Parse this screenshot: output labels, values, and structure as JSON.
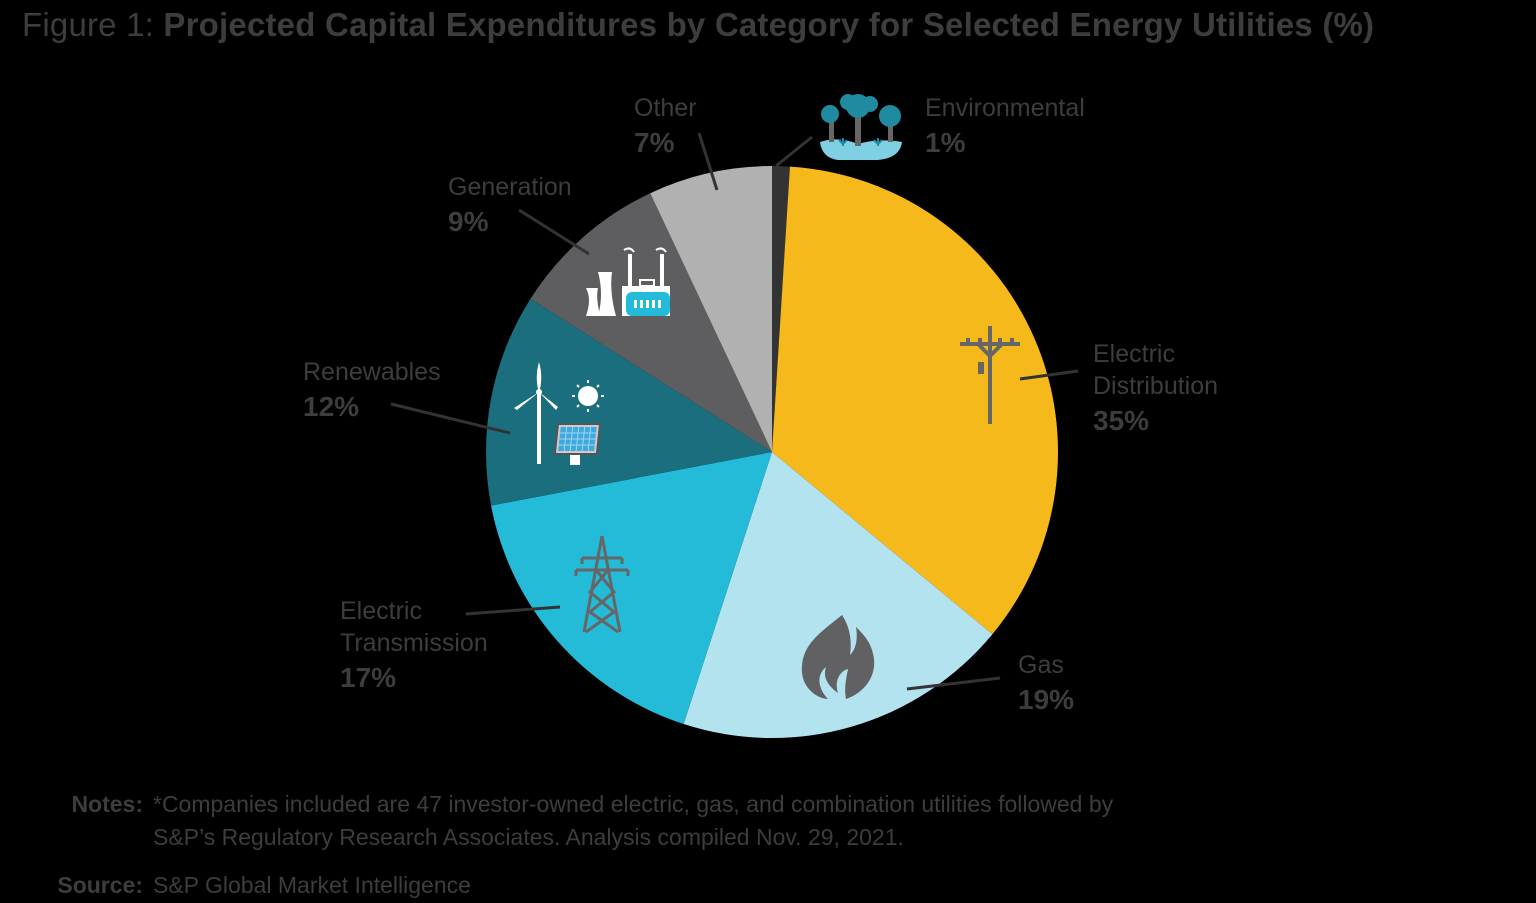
{
  "title": {
    "prefix": "Figure 1:",
    "main": "Projected Capital Expenditures by Category for Selected Energy Utilities (%)"
  },
  "chart_data": {
    "type": "pie",
    "title": "Projected Capital Expenditures by Category for Selected Energy Utilities (%)",
    "start_angle_deg": 0,
    "direction": "clockwise",
    "center": [
      772,
      452
    ],
    "radius": 286,
    "categories": [
      "Environmental",
      "Electric Distribution",
      "Gas",
      "Electric Transmission",
      "Renewables",
      "Generation",
      "Other"
    ],
    "values": [
      1,
      35,
      19,
      17,
      12,
      9,
      7
    ],
    "units": "%",
    "colors": [
      "#333333",
      "#f6b91c",
      "#b3e3ef",
      "#23bbd7",
      "#1b6e7e",
      "#5e5e60",
      "#b1b1b1"
    ],
    "icons": [
      "trees-icon",
      "utility-pole-icon",
      "flame-leaf-icon",
      "transmission-tower-icon",
      "wind-solar-icon",
      "power-plant-icon",
      null
    ],
    "legend": "none (callout labels)"
  },
  "labels": [
    {
      "name": "Environmental",
      "pct": "1%"
    },
    {
      "name": "Electric Distribution",
      "line1": "Electric",
      "line2": "Distribution",
      "pct": "35%"
    },
    {
      "name": "Gas",
      "pct": "19%"
    },
    {
      "name": "Electric Transmission",
      "line1": "Electric",
      "line2": "Transmission",
      "pct": "17%"
    },
    {
      "name": "Renewables",
      "pct": "12%"
    },
    {
      "name": "Generation",
      "pct": "9%"
    },
    {
      "name": "Other",
      "pct": "7%"
    }
  ],
  "notes": {
    "label": "Notes:",
    "line1": "*Companies included are 47 investor-owned electric, gas, and combination utilities followed by",
    "line2": "S&P’s Regulatory Research Associates. Analysis compiled Nov. 29, 2021."
  },
  "source": {
    "label": "Source:",
    "text": "S&P Global Market Intelligence"
  }
}
